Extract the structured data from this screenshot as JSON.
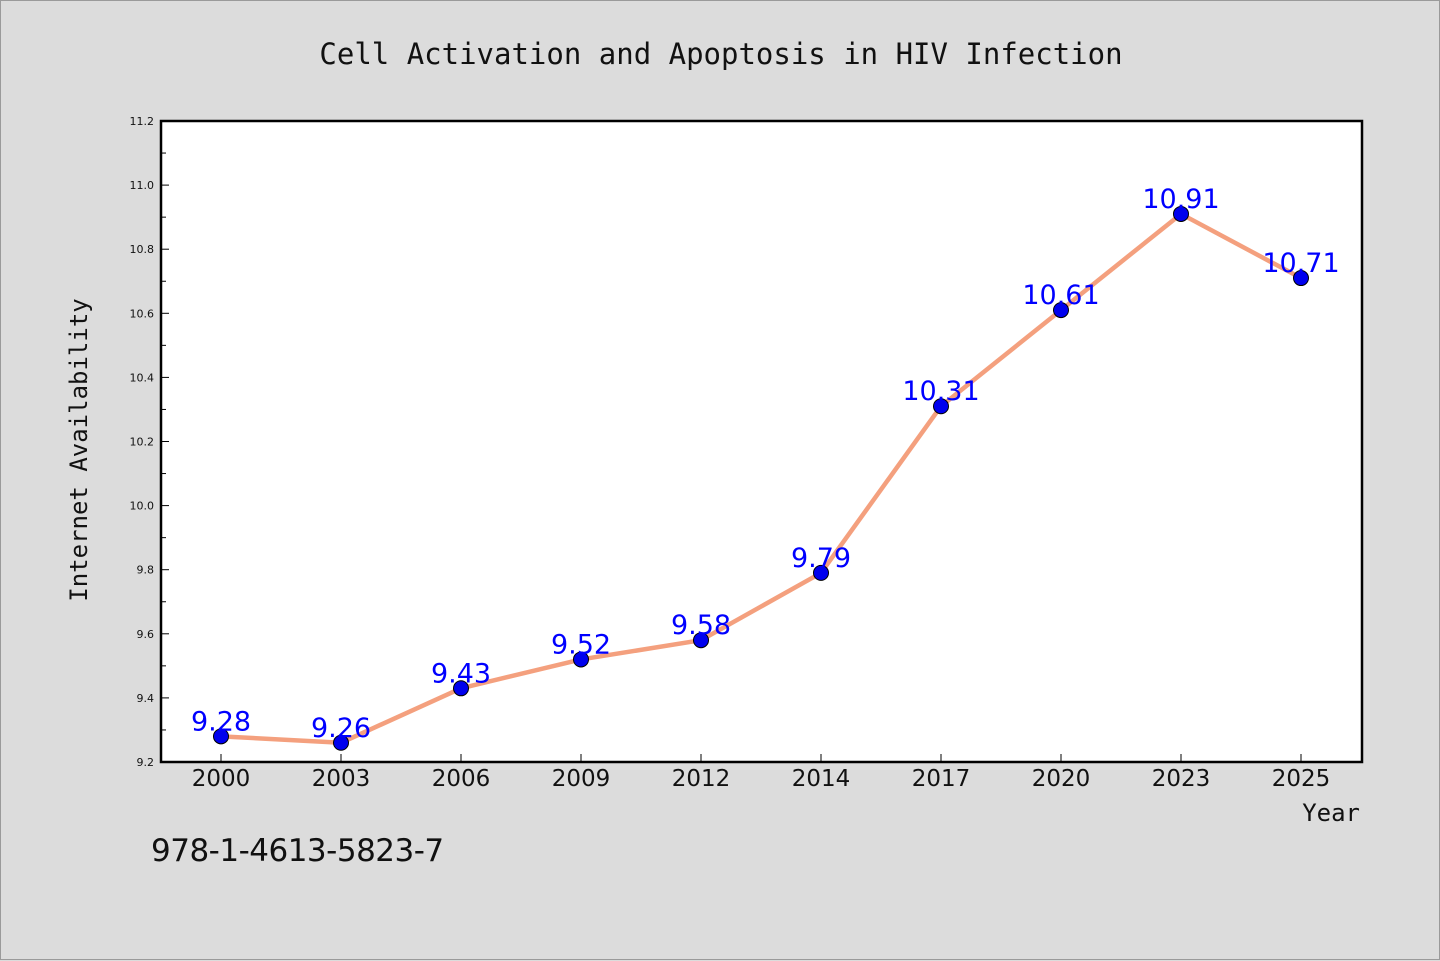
{
  "chart_data": {
    "type": "line",
    "title": "Cell Activation and Apoptosis in HIV Infection",
    "xlabel": "Year",
    "ylabel": "Internet Availability",
    "categories": [
      "2000",
      "2003",
      "2006",
      "2009",
      "2012",
      "2014",
      "2017",
      "2020",
      "2023",
      "2025"
    ],
    "values": [
      9.28,
      9.26,
      9.43,
      9.52,
      9.58,
      9.79,
      10.31,
      10.61,
      10.91,
      10.71
    ],
    "data_labels": [
      "9.28",
      "9.26",
      "9.43",
      "9.52",
      "9.58",
      "9.79",
      "10.31",
      "10.61",
      "10.91",
      "10.71"
    ],
    "ylim": [
      9.2,
      11.2
    ],
    "yticks": [
      "9.2",
      "9.4",
      "9.6",
      "9.8",
      "10.0",
      "10.2",
      "10.4",
      "10.6",
      "10.8",
      "11.0",
      "11.2"
    ],
    "grid": false,
    "line_color": "#f4a07e",
    "marker_color": "#0000ee",
    "label_color": "#0000ff"
  },
  "footer": {
    "isbn": "978-1-4613-5823-7"
  }
}
